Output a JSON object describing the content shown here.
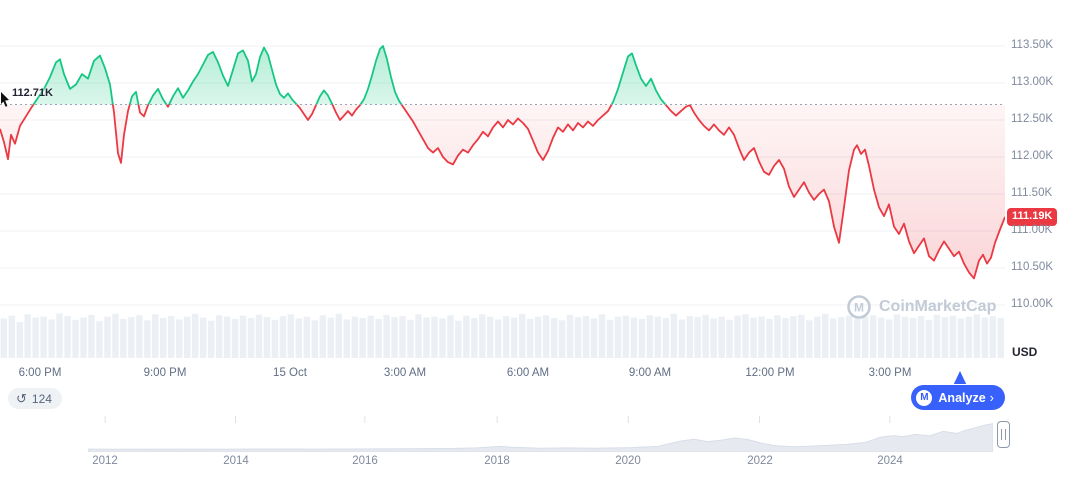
{
  "chart_data": {
    "type": "line",
    "baseline": {
      "value": 112.71,
      "label": "112.71K"
    },
    "last": {
      "value": 111.19,
      "label": "111.19K"
    },
    "unit": "USD",
    "colors": {
      "up": "#16c784",
      "down": "#ea3943",
      "accent": "#3861fb",
      "axis_text": "#808a9d"
    },
    "y_axis": {
      "values": [
        113.5,
        113.0,
        112.5,
        112.0,
        111.5,
        111.0,
        110.5,
        110.0
      ],
      "labels": [
        "113.50K",
        "113.00K",
        "112.50K",
        "112.00K",
        "111.50K",
        "111.00K",
        "110.50K",
        "110.00K"
      ]
    },
    "x_axis": {
      "labels": [
        "6:00 PM",
        "9:00 PM",
        "15 Oct",
        "3:00 AM",
        "6:00 AM",
        "9:00 AM",
        "12:00 PM",
        "3:00 PM"
      ],
      "fractions": [
        0.04,
        0.164,
        0.289,
        0.403,
        0.525,
        0.647,
        0.766,
        0.886
      ]
    },
    "series": [
      {
        "name": "price",
        "points": [
          [
            0,
            112.38
          ],
          [
            4,
            112.2
          ],
          [
            8,
            111.97
          ],
          [
            11,
            112.3
          ],
          [
            15,
            112.18
          ],
          [
            20,
            112.42
          ],
          [
            26,
            112.55
          ],
          [
            32,
            112.68
          ],
          [
            38,
            112.8
          ],
          [
            44,
            112.92
          ],
          [
            50,
            113.08
          ],
          [
            56,
            113.28
          ],
          [
            60,
            113.32
          ],
          [
            64,
            113.12
          ],
          [
            70,
            112.92
          ],
          [
            76,
            112.98
          ],
          [
            82,
            113.12
          ],
          [
            88,
            113.06
          ],
          [
            94,
            113.3
          ],
          [
            100,
            113.37
          ],
          [
            105,
            113.2
          ],
          [
            110,
            112.98
          ],
          [
            114,
            112.6
          ],
          [
            118,
            112.05
          ],
          [
            121,
            111.92
          ],
          [
            124,
            112.3
          ],
          [
            128,
            112.62
          ],
          [
            132,
            112.82
          ],
          [
            136,
            112.88
          ],
          [
            140,
            112.6
          ],
          [
            144,
            112.55
          ],
          [
            148,
            112.7
          ],
          [
            153,
            112.83
          ],
          [
            158,
            112.92
          ],
          [
            163,
            112.78
          ],
          [
            168,
            112.68
          ],
          [
            173,
            112.82
          ],
          [
            178,
            112.93
          ],
          [
            183,
            112.8
          ],
          [
            188,
            112.9
          ],
          [
            193,
            113.02
          ],
          [
            198,
            113.12
          ],
          [
            203,
            113.25
          ],
          [
            208,
            113.38
          ],
          [
            213,
            113.42
          ],
          [
            218,
            113.28
          ],
          [
            223,
            113.1
          ],
          [
            228,
            112.96
          ],
          [
            233,
            113.18
          ],
          [
            238,
            113.4
          ],
          [
            243,
            113.44
          ],
          [
            248,
            113.3
          ],
          [
            252,
            113.02
          ],
          [
            256,
            113.12
          ],
          [
            260,
            113.35
          ],
          [
            264,
            113.48
          ],
          [
            268,
            113.38
          ],
          [
            272,
            113.18
          ],
          [
            276,
            112.98
          ],
          [
            280,
            112.85
          ],
          [
            284,
            112.8
          ],
          [
            288,
            112.86
          ],
          [
            292,
            112.78
          ],
          [
            296,
            112.72
          ],
          [
            300,
            112.66
          ],
          [
            304,
            112.58
          ],
          [
            308,
            112.5
          ],
          [
            312,
            112.58
          ],
          [
            316,
            112.7
          ],
          [
            320,
            112.82
          ],
          [
            324,
            112.9
          ],
          [
            328,
            112.83
          ],
          [
            332,
            112.72
          ],
          [
            336,
            112.6
          ],
          [
            340,
            112.5
          ],
          [
            344,
            112.56
          ],
          [
            348,
            112.62
          ],
          [
            352,
            112.56
          ],
          [
            356,
            112.64
          ],
          [
            360,
            112.7
          ],
          [
            364,
            112.78
          ],
          [
            368,
            112.92
          ],
          [
            372,
            113.1
          ],
          [
            376,
            113.3
          ],
          [
            380,
            113.46
          ],
          [
            383,
            113.5
          ],
          [
            387,
            113.32
          ],
          [
            391,
            113.08
          ],
          [
            395,
            112.88
          ],
          [
            399,
            112.76
          ],
          [
            403,
            112.68
          ],
          [
            408,
            112.58
          ],
          [
            413,
            112.48
          ],
          [
            418,
            112.36
          ],
          [
            423,
            112.24
          ],
          [
            428,
            112.12
          ],
          [
            433,
            112.06
          ],
          [
            438,
            112.12
          ],
          [
            443,
            112.0
          ],
          [
            448,
            111.93
          ],
          [
            453,
            111.9
          ],
          [
            458,
            112.02
          ],
          [
            463,
            112.1
          ],
          [
            468,
            112.06
          ],
          [
            473,
            112.16
          ],
          [
            478,
            112.24
          ],
          [
            483,
            112.34
          ],
          [
            488,
            112.28
          ],
          [
            493,
            112.4
          ],
          [
            498,
            112.48
          ],
          [
            503,
            112.4
          ],
          [
            508,
            112.5
          ],
          [
            513,
            112.44
          ],
          [
            518,
            112.52
          ],
          [
            523,
            112.46
          ],
          [
            528,
            112.38
          ],
          [
            533,
            112.22
          ],
          [
            538,
            112.06
          ],
          [
            543,
            111.96
          ],
          [
            548,
            112.08
          ],
          [
            553,
            112.26
          ],
          [
            558,
            112.4
          ],
          [
            563,
            112.34
          ],
          [
            568,
            112.44
          ],
          [
            573,
            112.36
          ],
          [
            578,
            112.46
          ],
          [
            583,
            112.4
          ],
          [
            588,
            112.48
          ],
          [
            593,
            112.42
          ],
          [
            598,
            112.5
          ],
          [
            603,
            112.56
          ],
          [
            608,
            112.62
          ],
          [
            613,
            112.74
          ],
          [
            618,
            112.92
          ],
          [
            623,
            113.14
          ],
          [
            628,
            113.36
          ],
          [
            632,
            113.4
          ],
          [
            636,
            113.24
          ],
          [
            641,
            113.06
          ],
          [
            646,
            112.96
          ],
          [
            651,
            113.06
          ],
          [
            656,
            112.9
          ],
          [
            661,
            112.78
          ],
          [
            666,
            112.7
          ],
          [
            671,
            112.62
          ],
          [
            676,
            112.56
          ],
          [
            681,
            112.62
          ],
          [
            686,
            112.68
          ],
          [
            690,
            112.7
          ],
          [
            694,
            112.6
          ],
          [
            699,
            112.5
          ],
          [
            704,
            112.42
          ],
          [
            709,
            112.36
          ],
          [
            714,
            112.44
          ],
          [
            719,
            112.36
          ],
          [
            724,
            112.3
          ],
          [
            729,
            112.4
          ],
          [
            734,
            112.3
          ],
          [
            739,
            112.12
          ],
          [
            744,
            111.96
          ],
          [
            749,
            112.06
          ],
          [
            754,
            112.12
          ],
          [
            759,
            111.94
          ],
          [
            764,
            111.8
          ],
          [
            769,
            111.76
          ],
          [
            774,
            111.88
          ],
          [
            779,
            111.96
          ],
          [
            784,
            111.84
          ],
          [
            789,
            111.6
          ],
          [
            794,
            111.46
          ],
          [
            799,
            111.56
          ],
          [
            804,
            111.66
          ],
          [
            809,
            111.52
          ],
          [
            814,
            111.42
          ],
          [
            819,
            111.5
          ],
          [
            824,
            111.56
          ],
          [
            829,
            111.4
          ],
          [
            834,
            111.06
          ],
          [
            839,
            110.84
          ],
          [
            844,
            111.32
          ],
          [
            849,
            111.82
          ],
          [
            854,
            112.1
          ],
          [
            857,
            112.16
          ],
          [
            861,
            112.04
          ],
          [
            865,
            112.1
          ],
          [
            869,
            111.88
          ],
          [
            874,
            111.56
          ],
          [
            879,
            111.32
          ],
          [
            884,
            111.2
          ],
          [
            889,
            111.36
          ],
          [
            894,
            111.06
          ],
          [
            899,
            110.96
          ],
          [
            904,
            111.1
          ],
          [
            909,
            110.86
          ],
          [
            914,
            110.7
          ],
          [
            919,
            110.8
          ],
          [
            924,
            110.9
          ],
          [
            929,
            110.66
          ],
          [
            934,
            110.6
          ],
          [
            939,
            110.74
          ],
          [
            944,
            110.86
          ],
          [
            949,
            110.76
          ],
          [
            954,
            110.66
          ],
          [
            959,
            110.72
          ],
          [
            964,
            110.56
          ],
          [
            969,
            110.44
          ],
          [
            974,
            110.36
          ],
          [
            979,
            110.6
          ],
          [
            983,
            110.68
          ],
          [
            987,
            110.56
          ],
          [
            991,
            110.64
          ],
          [
            995,
            110.84
          ],
          [
            1000,
            111.02
          ],
          [
            1005,
            111.19
          ]
        ]
      }
    ]
  },
  "volume": {
    "heights": [
      0.86,
      0.92,
      0.78,
      0.95,
      0.88,
      0.9,
      0.84,
      0.97,
      0.91,
      0.83,
      0.88,
      0.94,
      0.8,
      0.9,
      0.96,
      0.85,
      0.89,
      0.93,
      0.82,
      0.95,
      0.87,
      0.91,
      0.84,
      0.9,
      0.96,
      0.88,
      0.81,
      0.93,
      0.9,
      0.85,
      0.92,
      0.87,
      0.94,
      0.89,
      0.83,
      0.91,
      0.95,
      0.86,
      0.9,
      0.82,
      0.93,
      0.88,
      0.96,
      0.84,
      0.9,
      0.87,
      0.92,
      0.85,
      0.94,
      0.89,
      0.91,
      0.83,
      0.95,
      0.88,
      0.9,
      0.86,
      0.93,
      0.81,
      0.92,
      0.87,
      0.95,
      0.9,
      0.84,
      0.91,
      0.88,
      0.96,
      0.85,
      0.9,
      0.93,
      0.87,
      0.82,
      0.94,
      0.89,
      0.91,
      0.86,
      0.95,
      0.83,
      0.9,
      0.92,
      0.88,
      0.85,
      0.93,
      0.9,
      0.87,
      0.96,
      0.84,
      0.91,
      0.89,
      0.94,
      0.86,
      0.9,
      0.83,
      0.92,
      0.95,
      0.88,
      0.9,
      0.85,
      0.93,
      0.87,
      0.91,
      0.94,
      0.82,
      0.9,
      0.96,
      0.86,
      0.89,
      0.92,
      0.85,
      0.9,
      0.93,
      0.88,
      0.84,
      0.95,
      0.9,
      0.87,
      0.91,
      0.83,
      0.94,
      0.89,
      0.92,
      0.86,
      0.9,
      0.95,
      0.88,
      0.91,
      0.87
    ]
  },
  "minimap": {
    "years": [
      "2012",
      "2014",
      "2016",
      "2018",
      "2020",
      "2022",
      "2024"
    ],
    "year_fractions": [
      0.019,
      0.163,
      0.306,
      0.452,
      0.597,
      0.742,
      0.886
    ],
    "points": [
      [
        0,
        0.03
      ],
      [
        0.05,
        0.025
      ],
      [
        0.1,
        0.03
      ],
      [
        0.15,
        0.028
      ],
      [
        0.2,
        0.032
      ],
      [
        0.25,
        0.03
      ],
      [
        0.3,
        0.035
      ],
      [
        0.35,
        0.04
      ],
      [
        0.4,
        0.05
      ],
      [
        0.43,
        0.07
      ],
      [
        0.455,
        0.12
      ],
      [
        0.47,
        0.09
      ],
      [
        0.5,
        0.06
      ],
      [
        0.53,
        0.07
      ],
      [
        0.56,
        0.06
      ],
      [
        0.6,
        0.08
      ],
      [
        0.63,
        0.12
      ],
      [
        0.655,
        0.3
      ],
      [
        0.67,
        0.36
      ],
      [
        0.685,
        0.28
      ],
      [
        0.7,
        0.33
      ],
      [
        0.715,
        0.4
      ],
      [
        0.73,
        0.34
      ],
      [
        0.745,
        0.22
      ],
      [
        0.76,
        0.14
      ],
      [
        0.78,
        0.11
      ],
      [
        0.8,
        0.13
      ],
      [
        0.82,
        0.16
      ],
      [
        0.84,
        0.19
      ],
      [
        0.86,
        0.26
      ],
      [
        0.875,
        0.42
      ],
      [
        0.89,
        0.48
      ],
      [
        0.9,
        0.44
      ],
      [
        0.915,
        0.52
      ],
      [
        0.93,
        0.47
      ],
      [
        0.945,
        0.62
      ],
      [
        0.96,
        0.55
      ],
      [
        0.97,
        0.66
      ],
      [
        0.98,
        0.74
      ],
      [
        0.99,
        0.82
      ],
      [
        1,
        0.88
      ]
    ]
  },
  "controls": {
    "history_count": "124",
    "history_icon": "↺",
    "analyze_label": "Analyze",
    "analyze_chevron": "›",
    "analyze_logo_letter": "M"
  },
  "watermark": {
    "label": "CoinMarketCap",
    "logo_letter": "M"
  }
}
